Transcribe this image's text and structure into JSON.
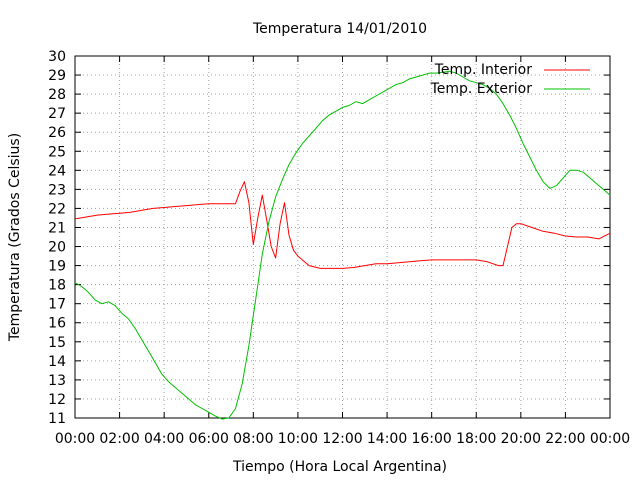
{
  "chart_data": {
    "type": "line",
    "title": "Temperatura 14/01/2010",
    "xlabel": "Tiempo (Hora Local Argentina)",
    "ylabel": "Temperatura (Grados Celsius)",
    "xlim": [
      0,
      24
    ],
    "ylim": [
      11,
      30
    ],
    "x_ticks": [
      "00:00",
      "02:00",
      "04:00",
      "06:00",
      "08:00",
      "10:00",
      "12:00",
      "14:00",
      "16:00",
      "18:00",
      "20:00",
      "22:00",
      "00:00"
    ],
    "y_ticks": [
      "11",
      "12",
      "13",
      "14",
      "15",
      "16",
      "17",
      "18",
      "19",
      "20",
      "21",
      "22",
      "23",
      "24",
      "25",
      "26",
      "27",
      "28",
      "29",
      "30"
    ],
    "grid": true,
    "legend_position": "top-right",
    "series": [
      {
        "name": "Temp. Interior",
        "color": "#ff0000",
        "x": [
          0,
          0.5,
          1,
          1.5,
          2,
          2.5,
          3,
          3.5,
          4,
          4.5,
          5,
          5.5,
          6,
          6.5,
          7,
          7.2,
          7.4,
          7.6,
          7.8,
          8.0,
          8.2,
          8.4,
          8.6,
          8.8,
          9.0,
          9.2,
          9.4,
          9.6,
          9.8,
          10.0,
          10.5,
          11,
          11.5,
          12,
          12.5,
          13,
          13.5,
          14,
          14.5,
          15,
          15.5,
          16,
          16.5,
          17,
          17.5,
          18,
          18.5,
          19,
          19.2,
          19.4,
          19.6,
          19.8,
          20,
          20.5,
          21,
          21.5,
          22,
          22.5,
          23,
          23.5,
          24
        ],
        "values": [
          21.45,
          21.55,
          21.65,
          21.7,
          21.75,
          21.8,
          21.9,
          22.0,
          22.05,
          22.1,
          22.15,
          22.2,
          22.25,
          22.25,
          22.25,
          22.25,
          22.9,
          23.4,
          22.3,
          20.1,
          21.5,
          22.7,
          21.4,
          20.0,
          19.4,
          21.2,
          22.3,
          20.6,
          19.8,
          19.5,
          19.0,
          18.85,
          18.85,
          18.85,
          18.9,
          19.0,
          19.1,
          19.1,
          19.15,
          19.2,
          19.25,
          19.3,
          19.3,
          19.3,
          19.3,
          19.3,
          19.2,
          19.0,
          19.0,
          20.0,
          21.0,
          21.2,
          21.2,
          21.0,
          20.8,
          20.7,
          20.55,
          20.5,
          20.5,
          20.4,
          20.7
        ]
      },
      {
        "name": "Temp. Exterior",
        "color": "#00c000",
        "x": [
          0,
          0.3,
          0.6,
          0.9,
          1.2,
          1.5,
          1.8,
          2.1,
          2.4,
          2.7,
          3.0,
          3.3,
          3.6,
          3.9,
          4.2,
          4.5,
          4.8,
          5.1,
          5.4,
          5.7,
          6.0,
          6.3,
          6.6,
          6.9,
          7.2,
          7.5,
          7.8,
          8.1,
          8.4,
          8.7,
          9.0,
          9.3,
          9.6,
          9.9,
          10.2,
          10.5,
          10.8,
          11.1,
          11.4,
          11.7,
          12.0,
          12.3,
          12.6,
          12.9,
          13.2,
          13.5,
          13.8,
          14.1,
          14.4,
          14.7,
          15.0,
          15.3,
          15.6,
          15.9,
          16.2,
          16.5,
          16.8,
          17.1,
          17.4,
          17.7,
          18.0,
          18.3,
          18.6,
          18.9,
          19.2,
          19.5,
          19.8,
          20.1,
          20.4,
          20.7,
          21.0,
          21.3,
          21.6,
          21.9,
          22.2,
          22.5,
          22.8,
          23.1,
          23.4,
          23.7,
          24.0
        ],
        "values": [
          18.1,
          17.9,
          17.6,
          17.2,
          17.0,
          17.1,
          16.9,
          16.5,
          16.2,
          15.7,
          15.1,
          14.5,
          13.9,
          13.3,
          12.9,
          12.6,
          12.3,
          12.0,
          11.7,
          11.5,
          11.3,
          11.1,
          10.95,
          11.0,
          11.5,
          12.8,
          14.8,
          17.2,
          19.6,
          21.3,
          22.6,
          23.5,
          24.3,
          24.9,
          25.4,
          25.8,
          26.2,
          26.6,
          26.9,
          27.1,
          27.3,
          27.4,
          27.6,
          27.5,
          27.7,
          27.9,
          28.1,
          28.3,
          28.5,
          28.6,
          28.8,
          28.9,
          29.0,
          29.1,
          29.1,
          29.15,
          29.2,
          29.1,
          28.9,
          28.7,
          28.6,
          28.5,
          28.3,
          28.0,
          27.5,
          26.9,
          26.2,
          25.4,
          24.7,
          24.0,
          23.4,
          23.05,
          23.2,
          23.6,
          24.0,
          24.0,
          23.9,
          23.6,
          23.3,
          23.0,
          22.7
        ]
      }
    ]
  }
}
